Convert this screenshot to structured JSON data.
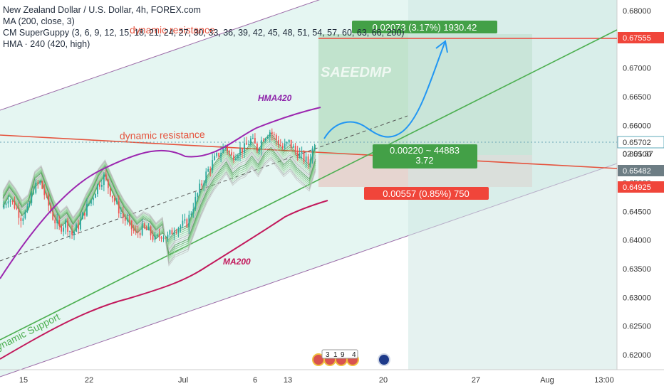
{
  "legend": {
    "symbol": "New Zealand Dollar / U.S. Dollar, 4h, FOREX.com",
    "ma": "MA (200, close, 3)",
    "guppy": "CM SuperGuppy (3, 6, 9, 12, 15, 18, 21, 24, 27, 30, 33, 36, 39, 42, 45, 48, 51, 54, 57, 60, 63, 66, 200)",
    "hma": "HMA · 240 (420, high)"
  },
  "watermark": "SAEEDMP",
  "annotations": {
    "dynamic_resistance_top": "dynamic resistance",
    "dynamic_resistance_mid": "dynamic resistance",
    "dynamic_support": "Dynamic Support",
    "hma_label": "HMA420",
    "ma_label": "MA200"
  },
  "position": {
    "target_box": "0.02073 (3.17%) 1930.42",
    "ratio_line1": "0.00220 ~ 44883",
    "ratio_line2": "3.72",
    "stop_box": "0.00557 (0.85%) 750"
  },
  "price_labels": {
    "target": "0.67555",
    "last": "0.65702",
    "countdown": "02:01:37",
    "entry": "0.65482",
    "stop": "0.64925"
  },
  "event_icons": {
    "digits": [
      "3",
      "1",
      "9",
      "4"
    ]
  },
  "colors": {
    "target_green": "#43a047",
    "stop_red": "#f0453a",
    "resistance_line": "#e5533d",
    "support_line": "#4caf50",
    "hma": "#9c27b0",
    "ma200": "#c2185b",
    "channel_fill": "#e0f5f0",
    "forecast_arrow": "#2196f3",
    "text_dark": "#1f2a3a"
  },
  "chart_data": {
    "type": "candlestick",
    "title": "New Zealand Dollar / U.S. Dollar, 4h, FOREX.com",
    "x_ticks": [
      "15",
      "22",
      "Jul",
      "6",
      "13",
      "20",
      "27",
      "Aug",
      "13:00"
    ],
    "y_ticks": [
      0.68,
      0.675,
      0.67,
      0.665,
      0.66,
      0.655,
      0.65,
      0.645,
      0.64,
      0.635,
      0.63,
      0.625,
      0.62
    ],
    "ylim": [
      0.618,
      0.6815
    ],
    "price_close_path": [
      [
        0.6455,
        0.6475,
        0.646,
        0.644,
        0.645,
        0.649,
        0.65,
        0.647,
        0.644,
        0.642
      ],
      [
        0.643,
        0.641,
        0.6425,
        0.645,
        0.647,
        0.6495,
        0.651,
        0.6485,
        0.646,
        0.644
      ],
      [
        0.6425,
        0.641,
        0.642,
        0.6415,
        0.64,
        0.641,
        0.6405,
        0.642,
        0.6425,
        0.643
      ],
      [
        0.646,
        0.649,
        0.6515,
        0.6535,
        0.655,
        0.6565,
        0.6545,
        0.6555,
        0.656,
        0.6575
      ],
      [
        0.656,
        0.658,
        0.659,
        0.6575,
        0.656,
        0.657,
        0.6555,
        0.6545,
        0.6535,
        0.657
      ]
    ],
    "levels": {
      "target": 0.67555,
      "last": 0.65702,
      "entry": 0.65482,
      "stop": 0.64925
    },
    "grid": false
  }
}
